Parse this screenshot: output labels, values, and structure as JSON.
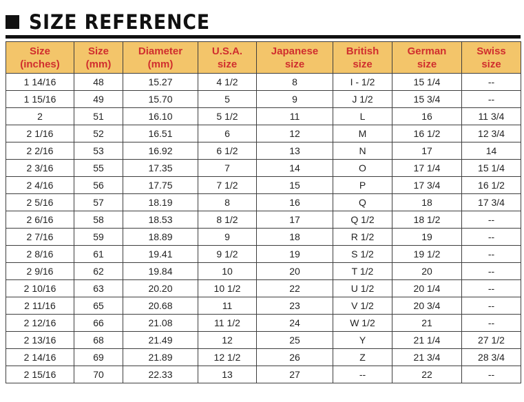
{
  "title": "SIZE REFERENCE",
  "table": {
    "headers": [
      [
        "Size",
        "(inches)"
      ],
      [
        "Size",
        "(mm)"
      ],
      [
        "Diameter",
        "(mm)"
      ],
      [
        "U.S.A.",
        "size"
      ],
      [
        "Japanese",
        "size"
      ],
      [
        "British",
        "size"
      ],
      [
        "German",
        "size"
      ],
      [
        "Swiss",
        "size"
      ]
    ],
    "rows": [
      [
        "1 14/16",
        "48",
        "15.27",
        "4 1/2",
        "8",
        "I - 1/2",
        "15 1/4",
        "--"
      ],
      [
        "1 15/16",
        "49",
        "15.70",
        "5",
        "9",
        "J 1/2",
        "15 3/4",
        "--"
      ],
      [
        "2",
        "51",
        "16.10",
        "5 1/2",
        "11",
        "L",
        "16",
        "11 3/4"
      ],
      [
        "2 1/16",
        "52",
        "16.51",
        "6",
        "12",
        "M",
        "16 1/2",
        "12 3/4"
      ],
      [
        "2 2/16",
        "53",
        "16.92",
        "6 1/2",
        "13",
        "N",
        "17",
        "14"
      ],
      [
        "2 3/16",
        "55",
        "17.35",
        "7",
        "14",
        "O",
        "17 1/4",
        "15 1/4"
      ],
      [
        "2 4/16",
        "56",
        "17.75",
        "7 1/2",
        "15",
        "P",
        "17 3/4",
        "16 1/2"
      ],
      [
        "2 5/16",
        "57",
        "18.19",
        "8",
        "16",
        "Q",
        "18",
        "17 3/4"
      ],
      [
        "2 6/16",
        "58",
        "18.53",
        "8 1/2",
        "17",
        "Q 1/2",
        "18 1/2",
        "--"
      ],
      [
        "2 7/16",
        "59",
        "18.89",
        "9",
        "18",
        "R 1/2",
        "19",
        "--"
      ],
      [
        "2 8/16",
        "61",
        "19.41",
        "9 1/2",
        "19",
        "S 1/2",
        "19 1/2",
        "--"
      ],
      [
        "2 9/16",
        "62",
        "19.84",
        "10",
        "20",
        "T 1/2",
        "20",
        "--"
      ],
      [
        "2 10/16",
        "63",
        "20.20",
        "10 1/2",
        "22",
        "U 1/2",
        "20 1/4",
        "--"
      ],
      [
        "2 11/16",
        "65",
        "20.68",
        "11",
        "23",
        "V 1/2",
        "20 3/4",
        "--"
      ],
      [
        "2 12/16",
        "66",
        "21.08",
        "11 1/2",
        "24",
        "W 1/2",
        "21",
        "--"
      ],
      [
        "2 13/16",
        "68",
        "21.49",
        "12",
        "25",
        "Y",
        "21 1/4",
        "27 1/2"
      ],
      [
        "2 14/16",
        "69",
        "21.89",
        "12 1/2",
        "26",
        "Z",
        "21 3/4",
        "28 3/4"
      ],
      [
        "2 15/16",
        "70",
        "22.33",
        "13",
        "27",
        "--",
        "22",
        "--"
      ]
    ]
  },
  "colors": {
    "header_bg": "#f3c56a",
    "header_text": "#d02e2e",
    "border": "#3d3d3d",
    "title": "#111111"
  }
}
